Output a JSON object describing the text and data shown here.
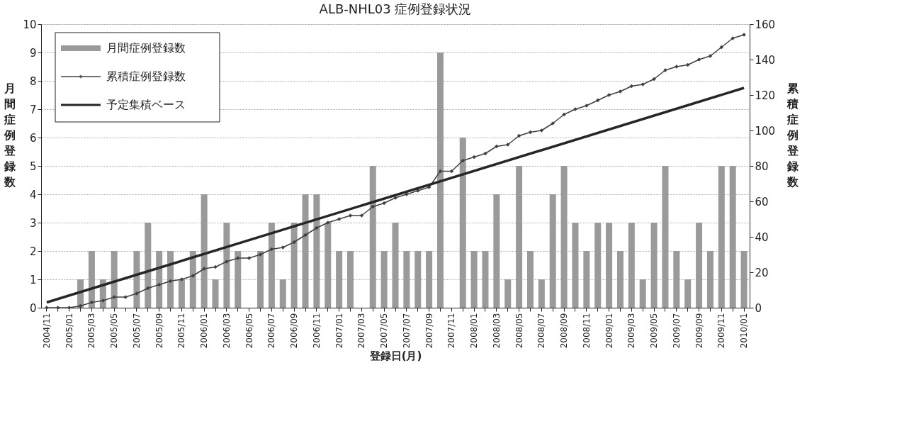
{
  "chart_data": {
    "type": "bar",
    "title": "ALB-NHL03 症例登録状況",
    "xlabel": "登録日(月)",
    "ylabel": "月間症例登録数",
    "y2label": "累積症例登録数",
    "categories": [
      "2004/11",
      null,
      "2005/01",
      null,
      "2005/03",
      null,
      "2005/05",
      null,
      "2005/07",
      null,
      "2005/09",
      null,
      "2005/11",
      null,
      "2006/01",
      null,
      "2006/03",
      null,
      "2006/05",
      null,
      "2006/07",
      null,
      "2006/09",
      null,
      "2006/11",
      null,
      "2007/01",
      null,
      "2007/03",
      null,
      "2007/05",
      null,
      "2007/07",
      null,
      "2007/09",
      null,
      "2007/11",
      null,
      "2008/01",
      null,
      "2008/03",
      null,
      "2008/05",
      null,
      "2008/07",
      null,
      "2008/09",
      null,
      "2008/11",
      null,
      "2009/01",
      null,
      "2009/03",
      null,
      "2009/05",
      null,
      "2009/07",
      null,
      "2009/09",
      null,
      "2009/11",
      null,
      "2010/01"
    ],
    "series": [
      {
        "name": "月間症例登録数",
        "color": "#9a9a9a",
        "values": [
          0,
          0,
          0,
          1,
          2,
          1,
          2,
          0,
          2,
          3,
          2,
          2,
          1,
          2,
          4,
          1,
          3,
          2,
          0,
          2,
          3,
          1,
          3,
          4,
          4,
          3,
          2,
          2,
          0,
          5,
          2,
          3,
          2,
          2,
          2,
          9,
          0,
          6,
          2,
          2,
          4,
          1,
          5,
          2,
          1,
          4,
          5,
          3,
          2,
          3,
          3,
          2,
          3,
          1,
          3,
          5,
          2,
          1,
          3,
          2,
          5,
          5,
          2
        ]
      },
      {
        "name": "累積症例登録数",
        "type": "line",
        "axis": "y2",
        "color": "#404040",
        "marker": "diamond",
        "line_style": "solid",
        "values": [
          0,
          0,
          0,
          1,
          3,
          4,
          6,
          6,
          8,
          11,
          13,
          15,
          16,
          18,
          22,
          23,
          26,
          28,
          28,
          30,
          33,
          34,
          37,
          41,
          45,
          48,
          50,
          52,
          52,
          57,
          59,
          62,
          64,
          66,
          68,
          77,
          77,
          83,
          85,
          87,
          91,
          92,
          97,
          99,
          100,
          104,
          109,
          112,
          114,
          117,
          120,
          122,
          125,
          126,
          129,
          134,
          136,
          137,
          140,
          142,
          147,
          152,
          154
        ]
      },
      {
        "name": "予定集積ベース",
        "type": "line",
        "axis": "y2",
        "color": "#262626",
        "marker": "none",
        "line_style": "solid",
        "x": [
          "2004/11",
          "2010/01"
        ],
        "values": [
          3,
          124
        ]
      }
    ],
    "ylim": [
      0,
      10
    ],
    "yticks": [
      0,
      1,
      2,
      3,
      4,
      5,
      6,
      7,
      8,
      9,
      10
    ],
    "y2lim": [
      0,
      160
    ],
    "y2ticks": [
      0,
      20,
      40,
      60,
      80,
      100,
      120,
      140,
      160
    ],
    "grid": "y",
    "legend": "top left"
  }
}
